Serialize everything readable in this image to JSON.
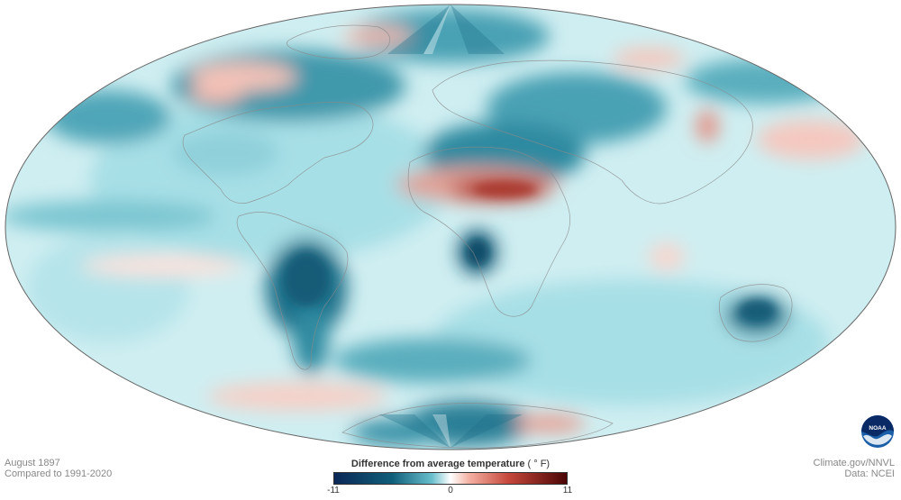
{
  "map": {
    "projection": "Robinson-like world map",
    "caption_left": [
      "August 1897",
      "Compared to 1991-2020"
    ],
    "caption_right": [
      "Climate.gov/NNVL",
      "Data: NCEI"
    ],
    "logo_text": "NOAA"
  },
  "legend": {
    "title": "Difference from average temperature",
    "unit": "( ° F)",
    "min_label": "-11",
    "mid_label": "0",
    "max_label": "11",
    "colors": {
      "cold_extreme": "#0b2856",
      "cold": "#105f7a",
      "cool": "#69bfcc",
      "neutral": "#ffffff",
      "warm": "#f4b1a3",
      "hot": "#c5473b",
      "hot_extreme": "#4a0505"
    }
  }
}
